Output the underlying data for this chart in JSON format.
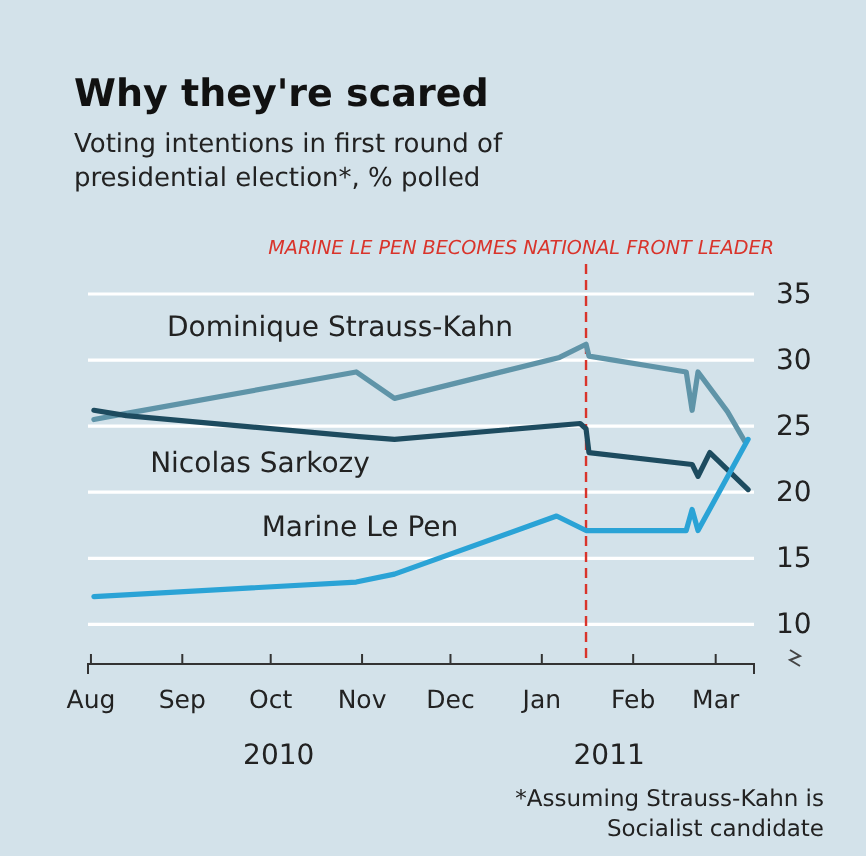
{
  "chart_data": {
    "type": "line",
    "title": "Why they're scared",
    "subtitle": "Voting intentions in first round of presidential election*, % polled",
    "xlim": [
      "2010-07-31",
      "2011-03-14"
    ],
    "xticks": [
      {
        "value": "2010-08-01",
        "label": "Aug"
      },
      {
        "value": "2010-09-01",
        "label": "Sep"
      },
      {
        "value": "2010-10-01",
        "label": "Oct"
      },
      {
        "value": "2010-11-01",
        "label": "Nov"
      },
      {
        "value": "2010-12-01",
        "label": "Dec"
      },
      {
        "value": "2011-01-01",
        "label": "Jan"
      },
      {
        "value": "2011-02-01",
        "label": "Feb"
      },
      {
        "value": "2011-03-01",
        "label": "Mar"
      }
    ],
    "ylim": [
      7,
      35
    ],
    "yticks": [
      10,
      15,
      20,
      25,
      30,
      35
    ],
    "grid": "y",
    "legend": false,
    "line_style": "solid",
    "marker": "none",
    "series": [
      {
        "name": "Dominique Strauss-Kahn",
        "color": "#5f94a8",
        "x": [
          "2010-08-02",
          "2010-08-14",
          "2010-10-30",
          "2010-11-12",
          "2011-01-07",
          "2011-01-16",
          "2011-01-17",
          "2011-02-19",
          "2011-02-21",
          "2011-02-23",
          "2011-03-05",
          "2011-03-11"
        ],
        "values": [
          25.5,
          26,
          29.1,
          27.1,
          30.2,
          31.2,
          30.3,
          29.1,
          26.2,
          29.1,
          26.1,
          23.8
        ]
      },
      {
        "name": "Nicolas Sarkozy",
        "color": "#1d4b5f",
        "x": [
          "2010-08-02",
          "2010-08-13",
          "2010-10-31",
          "2010-11-12",
          "2011-01-14",
          "2011-01-16",
          "2011-01-17",
          "2011-02-21",
          "2011-02-23",
          "2011-02-27",
          "2011-03-12"
        ],
        "values": [
          26.2,
          25.8,
          24.2,
          24.0,
          25.2,
          24.8,
          23.0,
          22.1,
          21.2,
          23.0,
          20.2
        ]
      },
      {
        "name": "Marine Le Pen",
        "color": "#2aa3d6",
        "x": [
          "2010-08-02",
          "2010-10-30",
          "2010-11-12",
          "2011-01-06",
          "2011-01-16",
          "2011-02-19",
          "2011-02-21",
          "2011-02-23",
          "2011-03-12"
        ],
        "values": [
          12.1,
          13.2,
          13.8,
          18.2,
          17.1,
          17.1,
          18.7,
          17.1,
          24.0
        ]
      }
    ],
    "ref_lines": [
      {
        "axis": "x",
        "value": "2011-01-16",
        "label": "MARINE LE PEN BECOMES NATIONAL FRONT LEADER",
        "color": "#d9342b",
        "line_style": "dashed"
      }
    ],
    "annotations": [
      "2010",
      "2011",
      "*Assuming Strauss-Kahn is Socialist candidate"
    ]
  }
}
